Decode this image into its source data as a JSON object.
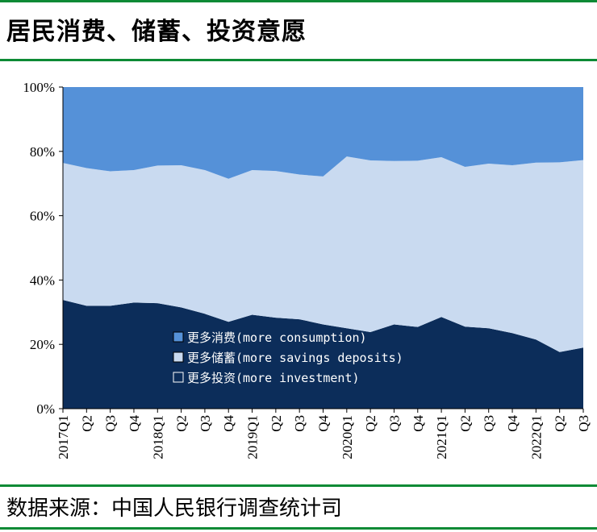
{
  "header": {
    "title": "居民消费、储蓄、投资意愿"
  },
  "footer": {
    "source": "数据来源：中国人民银行调查统计司"
  },
  "colors": {
    "consumption": "#5591d8",
    "savings": "#c9daf0",
    "investment": "#0c2d5a",
    "rule": "#0d8a35"
  },
  "chart_data": {
    "type": "area",
    "stacked": true,
    "categories": [
      "2017Q1",
      "Q2",
      "Q3",
      "Q4",
      "2018Q1",
      "Q2",
      "Q3",
      "Q4",
      "2019Q1",
      "Q2",
      "Q3",
      "Q4",
      "2020Q1",
      "Q2",
      "Q3",
      "Q4",
      "2021Q1",
      "Q2",
      "Q3",
      "Q4",
      "2022Q1",
      "Q2",
      "Q3"
    ],
    "category_labels": [
      "2017Q1",
      "Q2",
      "Q3",
      "Q4",
      "2018Q1",
      "Q2",
      "Q3",
      "Q4",
      "2019Q1",
      "Q2",
      "Q3",
      "Q4",
      "2020Q1",
      "Q2",
      "Q3",
      "Q4",
      "2021Q1",
      "Q2",
      "Q3",
      "Q4",
      "2022Q1",
      "Q2",
      "Q3"
    ],
    "series": [
      {
        "name": "更多投资(more investment)",
        "key": "investment",
        "values": [
          33.8,
          32.0,
          32.0,
          33.0,
          32.8,
          31.5,
          29.5,
          27.0,
          29.2,
          28.3,
          27.8,
          26.2,
          25.0,
          23.8,
          26.2,
          25.4,
          28.5,
          25.5,
          25.0,
          23.5,
          21.5,
          17.6,
          19.0
        ]
      },
      {
        "name": "更多储蓄(more savings deposits)",
        "key": "savings",
        "values": [
          42.6,
          42.8,
          41.8,
          41.2,
          42.8,
          44.2,
          44.7,
          44.5,
          45.0,
          45.6,
          45.0,
          46.0,
          53.4,
          53.4,
          50.8,
          51.7,
          49.7,
          49.7,
          51.2,
          52.2,
          55.0,
          59.0,
          58.3
        ]
      },
      {
        "name": "更多消费(more consumption)",
        "key": "consumption",
        "values": [
          23.6,
          25.2,
          26.2,
          25.8,
          24.4,
          24.3,
          25.8,
          28.5,
          25.8,
          26.1,
          27.2,
          27.8,
          21.6,
          22.8,
          23.0,
          22.9,
          21.8,
          24.8,
          23.8,
          24.3,
          23.5,
          23.4,
          22.7
        ]
      }
    ],
    "legend_order": [
      "consumption",
      "savings",
      "investment"
    ],
    "legend_position": "lower-center",
    "ylim": [
      0,
      100
    ],
    "yticks": [
      "0%",
      "20%",
      "40%",
      "60%",
      "80%",
      "100%"
    ],
    "xlabel": "",
    "ylabel": "",
    "grid": false
  }
}
